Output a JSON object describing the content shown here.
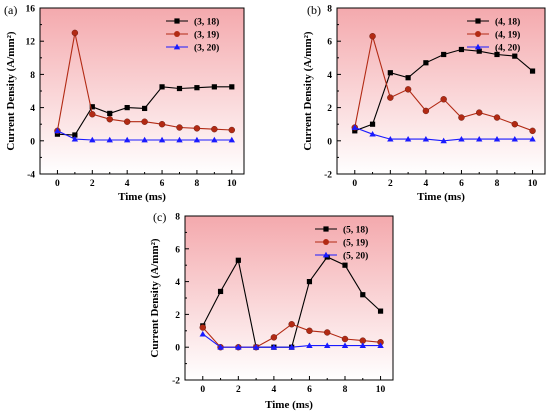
{
  "figure": {
    "colors": {
      "series_18": "#000000",
      "series_19": "#b22a14",
      "series_20": "#1a1aff",
      "bg_top": "#f4a9ad",
      "bg_bottom": "#ffffff"
    }
  },
  "chart_data": [
    {
      "type": "line",
      "panel_label": "(a)",
      "xlabel": "Time (ms)",
      "ylabel": "Current Density (A/mm²)",
      "xlim": [
        -1,
        10.7
      ],
      "ylim": [
        -4,
        16
      ],
      "xticks": [
        0,
        2,
        4,
        6,
        8,
        10
      ],
      "yticks": [
        -4,
        0,
        4,
        8,
        12,
        16
      ],
      "x": [
        0,
        1,
        2,
        3,
        4,
        5,
        6,
        7,
        8,
        9,
        10
      ],
      "legend_position": "top-right",
      "series": [
        {
          "name": "(3, 18)",
          "marker": "square",
          "values": [
            0.8,
            0.7,
            4.1,
            3.3,
            4.0,
            3.9,
            6.5,
            6.3,
            6.4,
            6.5,
            6.5
          ]
        },
        {
          "name": "(3, 19)",
          "marker": "circle",
          "values": [
            1.2,
            13.0,
            3.2,
            2.6,
            2.3,
            2.3,
            2.0,
            1.6,
            1.5,
            1.4,
            1.3
          ]
        },
        {
          "name": "(3, 20)",
          "marker": "triangle",
          "values": [
            1.2,
            0.2,
            0.1,
            0.1,
            0.1,
            0.1,
            0.1,
            0.1,
            0.1,
            0.1,
            0.1
          ]
        }
      ]
    },
    {
      "type": "line",
      "panel_label": "(b)",
      "xlabel": "Time (ms)",
      "ylabel": "Current Density (A/mm²)",
      "xlim": [
        -1,
        10.7
      ],
      "ylim": [
        -2,
        8
      ],
      "xticks": [
        0,
        2,
        4,
        6,
        8,
        10
      ],
      "yticks": [
        -2,
        0,
        2,
        4,
        6,
        8
      ],
      "x": [
        0,
        1,
        2,
        3,
        4,
        5,
        6,
        7,
        8,
        9,
        10
      ],
      "legend_position": "top-right",
      "series": [
        {
          "name": "(4, 18)",
          "marker": "square",
          "values": [
            0.6,
            1.0,
            4.1,
            3.8,
            4.7,
            5.2,
            5.5,
            5.4,
            5.2,
            5.1,
            4.2
          ]
        },
        {
          "name": "(4, 19)",
          "marker": "circle",
          "values": [
            0.8,
            6.3,
            2.6,
            3.1,
            1.8,
            2.5,
            1.4,
            1.7,
            1.4,
            1.0,
            0.6
          ]
        },
        {
          "name": "(4, 20)",
          "marker": "triangle",
          "values": [
            0.8,
            0.4,
            0.1,
            0.1,
            0.1,
            0.0,
            0.1,
            0.1,
            0.1,
            0.1,
            0.1
          ]
        }
      ]
    },
    {
      "type": "line",
      "panel_label": "(c)",
      "xlabel": "Time (ms)",
      "ylabel": "Current Density (A/mm²)",
      "xlim": [
        -1,
        10.7
      ],
      "ylim": [
        -2,
        8
      ],
      "xticks": [
        0,
        2,
        4,
        6,
        8,
        10
      ],
      "yticks": [
        -2,
        0,
        2,
        4,
        6,
        8
      ],
      "x": [
        0,
        1,
        2,
        3,
        4,
        5,
        6,
        7,
        8,
        9,
        10
      ],
      "legend_position": "top-right",
      "series": [
        {
          "name": "(5, 18)",
          "marker": "square",
          "values": [
            1.3,
            3.4,
            5.3,
            0.0,
            0.0,
            0.0,
            4.0,
            5.5,
            5.0,
            3.2,
            2.2
          ]
        },
        {
          "name": "(5, 19)",
          "marker": "circle",
          "values": [
            1.2,
            0.0,
            0.0,
            0.0,
            0.6,
            1.4,
            1.0,
            0.9,
            0.5,
            0.4,
            0.3
          ]
        },
        {
          "name": "(5, 20)",
          "marker": "triangle",
          "values": [
            0.8,
            0.0,
            0.0,
            0.0,
            0.0,
            0.0,
            0.1,
            0.1,
            0.1,
            0.1,
            0.1
          ]
        }
      ]
    }
  ]
}
